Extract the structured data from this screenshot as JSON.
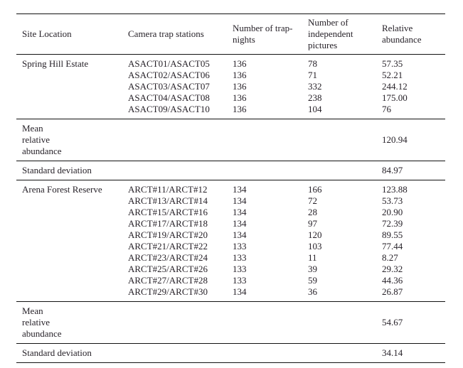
{
  "table": {
    "columns": [
      "Site Location",
      "Camera trap stations",
      "Number of trap-nights",
      "Number of independent pictures",
      "Relative abundance"
    ],
    "sections": [
      {
        "site": "Spring Hill Estate",
        "rows": [
          {
            "stations": "ASACT01/ASACT05",
            "trap_nights": "136",
            "independent_pictures": "78",
            "relative_abundance": "57.35"
          },
          {
            "stations": "ASACT02/ASACT06",
            "trap_nights": "136",
            "independent_pictures": "71",
            "relative_abundance": "52.21"
          },
          {
            "stations": "ASACT03/ASACT07",
            "trap_nights": "136",
            "independent_pictures": "332",
            "relative_abundance": "244.12"
          },
          {
            "stations": "ASACT04/ASACT08",
            "trap_nights": "136",
            "independent_pictures": "238",
            "relative_abundance": "175.00"
          },
          {
            "stations": "ASACT09/ASACT10",
            "trap_nights": "136",
            "independent_pictures": "104",
            "relative_abundance": "76"
          }
        ],
        "summaries": [
          {
            "label": "Mean\nrelative\nabundance",
            "value": "120.94"
          },
          {
            "label": "Standard deviation",
            "value": "84.97"
          }
        ]
      },
      {
        "site": "Arena Forest Reserve",
        "rows": [
          {
            "stations": "ARCT#11/ARCT#12",
            "trap_nights": "134",
            "independent_pictures": "166",
            "relative_abundance": "123.88"
          },
          {
            "stations": "ARCT#13/ARCT#14",
            "trap_nights": "134",
            "independent_pictures": "72",
            "relative_abundance": "53.73"
          },
          {
            "stations": "ARCT#15/ARCT#16",
            "trap_nights": "134",
            "independent_pictures": "28",
            "relative_abundance": "20.90"
          },
          {
            "stations": "ARCT#17/ARCT#18",
            "trap_nights": "134",
            "independent_pictures": "97",
            "relative_abundance": "72.39"
          },
          {
            "stations": "ARCT#19/ARCT#20",
            "trap_nights": "134",
            "independent_pictures": "120",
            "relative_abundance": "89.55"
          },
          {
            "stations": "ARCT#21/ARCT#22",
            "trap_nights": "133",
            "independent_pictures": "103",
            "relative_abundance": "77.44"
          },
          {
            "stations": "ARCT#23/ARCT#24",
            "trap_nights": "133",
            "independent_pictures": "11",
            "relative_abundance": "8.27"
          },
          {
            "stations": "ARCT#25/ARCT#26",
            "trap_nights": "133",
            "independent_pictures": "39",
            "relative_abundance": "29.32"
          },
          {
            "stations": "ARCT#27/ARCT#28",
            "trap_nights": "133",
            "independent_pictures": "59",
            "relative_abundance": "44.36"
          },
          {
            "stations": "ARCT#29/ARCT#30",
            "trap_nights": "134",
            "independent_pictures": "36",
            "relative_abundance": "26.87"
          }
        ],
        "summaries": [
          {
            "label": "Mean\nrelative\nabundance",
            "value": "54.67"
          },
          {
            "label": "Standard deviation",
            "value": "34.14"
          }
        ]
      }
    ]
  },
  "colors": {
    "background": "#ffffff",
    "text": "#272229",
    "rule": "#121212"
  }
}
